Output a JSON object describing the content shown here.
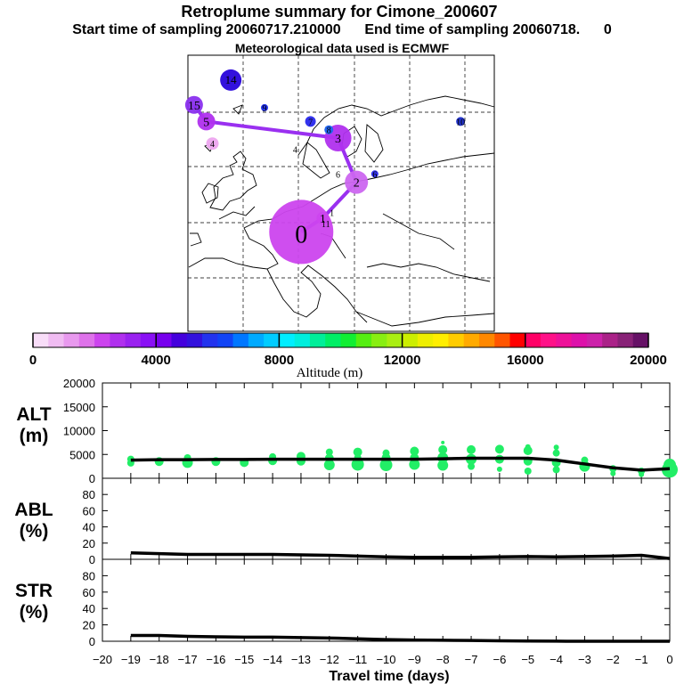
{
  "header": {
    "title": "Retroplume summary for Cimone_200607",
    "subtitle": "Start time of sampling 20060717.210000      End time of sampling 20060718.      0",
    "met_note": "Meteorological data used is ECMWF"
  },
  "colors": {
    "plume_purple": "#9a30f0",
    "alt_points": "#22ee66",
    "black": "#000000"
  },
  "map": {
    "track_days": [
      0,
      1,
      2,
      3,
      5,
      15
    ],
    "track": [
      {
        "day": 0,
        "label": "0",
        "lon_frac": 0.37,
        "lat_frac": 0.64,
        "size": 36,
        "color": "#cc44ee"
      },
      {
        "day": 1,
        "label": "1",
        "lon_frac": 0.44,
        "lat_frac": 0.59,
        "size": 7,
        "color": "#cc44ee"
      },
      {
        "day": 2,
        "label": "2",
        "lon_frac": 0.55,
        "lat_frac": 0.46,
        "size": 13,
        "color": "#cc66f0"
      },
      {
        "day": 3,
        "label": "3",
        "lon_frac": 0.49,
        "lat_frac": 0.3,
        "size": 15,
        "color": "#b030ee"
      },
      {
        "day": 5,
        "label": "5",
        "lon_frac": 0.06,
        "lat_frac": 0.24,
        "size": 10,
        "color": "#b030ee"
      },
      {
        "day": 15,
        "label": "15",
        "lon_frac": 0.02,
        "lat_frac": 0.18,
        "size": 10,
        "color": "#8a30ee"
      }
    ],
    "labels": [
      {
        "text": "14",
        "color": "#3311dd",
        "size": 12,
        "lon_frac": 0.14,
        "lat_frac": 0.09
      },
      {
        "text": "9",
        "color": "#2233ee",
        "size": 4,
        "lon_frac": 0.25,
        "lat_frac": 0.19
      },
      {
        "text": "4",
        "color": "#eeaaf0",
        "size": 7,
        "lon_frac": 0.08,
        "lat_frac": 0.32
      },
      {
        "text": "4",
        "color": "#ffffff",
        "size": 0,
        "lon_frac": 0.35,
        "lat_frac": 0.34
      },
      {
        "text": "7",
        "color": "#3333ee",
        "size": 6,
        "lon_frac": 0.4,
        "lat_frac": 0.24
      },
      {
        "text": "8",
        "color": "#2266ee",
        "size": 5,
        "lon_frac": 0.46,
        "lat_frac": 0.27
      },
      {
        "text": "10",
        "color": "#2233cc",
        "size": 5,
        "lon_frac": 0.89,
        "lat_frac": 0.24
      },
      {
        "text": "6",
        "color": "#ffffff",
        "size": 0,
        "lon_frac": 0.49,
        "lat_frac": 0.43
      },
      {
        "text": "6",
        "color": "#3333ee",
        "size": 4,
        "lon_frac": 0.61,
        "lat_frac": 0.43
      },
      {
        "text": "1",
        "color": "#ffffff",
        "size": 0,
        "lon_frac": 0.47,
        "lat_frac": 0.57
      },
      {
        "text": "11",
        "color": "#ffffff",
        "size": 0,
        "lon_frac": 0.45,
        "lat_frac": 0.61
      }
    ]
  },
  "colorbar": {
    "title": "Altitude (m)",
    "ticks": [
      "0",
      "4000",
      "8000",
      "12000",
      "16000",
      "20000"
    ],
    "colors": [
      "#f8ddf8",
      "#f0bcf2",
      "#e899ee",
      "#de72ea",
      "#cc44ee",
      "#b030ee",
      "#9a22f0",
      "#8a10f5",
      "#7700ee",
      "#4400dd",
      "#3311dd",
      "#2233ee",
      "#1144f5",
      "#0077ff",
      "#00aaff",
      "#00ccff",
      "#00eeff",
      "#00eedd",
      "#00ee99",
      "#00ee66",
      "#11ee33",
      "#55ee11",
      "#88ee11",
      "#aaee11",
      "#ccee00",
      "#eeee00",
      "#ffee00",
      "#ffcc00",
      "#ffaa00",
      "#ff8800",
      "#ff5500",
      "#ff0000",
      "#ff0066",
      "#ff1188",
      "#ee1199",
      "#dd11aa",
      "#cc22aa",
      "#aa2288",
      "#882277",
      "#661166"
    ]
  },
  "chart_data": [
    {
      "type": "line",
      "name": "alt",
      "ylabel": "ALT\n(m)",
      "ylabel_lines": [
        "ALT",
        "(m)"
      ],
      "ylim": [
        0,
        20000
      ],
      "yticks": [
        "0",
        "5000",
        "10000",
        "15000",
        "20000"
      ],
      "x": [
        -19,
        -18,
        -17,
        -16,
        -15,
        -14,
        -13,
        -12,
        -11,
        -10,
        -9,
        -8,
        -7,
        -6,
        -5,
        -4,
        -3,
        -2,
        -1,
        0
      ],
      "values": [
        3800,
        3900,
        3900,
        3950,
        3950,
        4000,
        4000,
        4000,
        4000,
        4000,
        4000,
        4100,
        4200,
        4200,
        4200,
        3800,
        3000,
        2200,
        1700,
        2000
      ],
      "scatter": [
        {
          "x": -19,
          "y": 3200,
          "s": 4
        },
        {
          "x": -19,
          "y": 4000,
          "s": 4
        },
        {
          "x": -18,
          "y": 3500,
          "s": 5
        },
        {
          "x": -17,
          "y": 3300,
          "s": 6
        },
        {
          "x": -17,
          "y": 4300,
          "s": 4
        },
        {
          "x": -16,
          "y": 3500,
          "s": 5
        },
        {
          "x": -15,
          "y": 3300,
          "s": 5
        },
        {
          "x": -14,
          "y": 3700,
          "s": 5
        },
        {
          "x": -14,
          "y": 4500,
          "s": 4
        },
        {
          "x": -13,
          "y": 3600,
          "s": 5
        },
        {
          "x": -13,
          "y": 4600,
          "s": 5
        },
        {
          "x": -12,
          "y": 2800,
          "s": 6
        },
        {
          "x": -12,
          "y": 4200,
          "s": 5
        },
        {
          "x": -12,
          "y": 5500,
          "s": 4
        },
        {
          "x": -11,
          "y": 2900,
          "s": 7
        },
        {
          "x": -11,
          "y": 4300,
          "s": 4
        },
        {
          "x": -11,
          "y": 5500,
          "s": 5
        },
        {
          "x": -10,
          "y": 2800,
          "s": 7
        },
        {
          "x": -10,
          "y": 4300,
          "s": 5
        },
        {
          "x": -10,
          "y": 5300,
          "s": 4
        },
        {
          "x": -9,
          "y": 2900,
          "s": 6
        },
        {
          "x": -9,
          "y": 4300,
          "s": 5
        },
        {
          "x": -9,
          "y": 5700,
          "s": 5
        },
        {
          "x": -8,
          "y": 2700,
          "s": 6
        },
        {
          "x": -8,
          "y": 4300,
          "s": 6
        },
        {
          "x": -8,
          "y": 6000,
          "s": 5
        },
        {
          "x": -8,
          "y": 7500,
          "s": 2
        },
        {
          "x": -7,
          "y": 2500,
          "s": 4
        },
        {
          "x": -7,
          "y": 4000,
          "s": 6
        },
        {
          "x": -7,
          "y": 6000,
          "s": 5
        },
        {
          "x": -6,
          "y": 1900,
          "s": 3
        },
        {
          "x": -6,
          "y": 4000,
          "s": 5
        },
        {
          "x": -6,
          "y": 6100,
          "s": 5
        },
        {
          "x": -5,
          "y": 1500,
          "s": 4
        },
        {
          "x": -5,
          "y": 3600,
          "s": 5
        },
        {
          "x": -5,
          "y": 5800,
          "s": 5
        },
        {
          "x": -5,
          "y": 6600,
          "s": 3
        },
        {
          "x": -4,
          "y": 1800,
          "s": 4
        },
        {
          "x": -4,
          "y": 3300,
          "s": 5
        },
        {
          "x": -4,
          "y": 5300,
          "s": 4
        },
        {
          "x": -4,
          "y": 6500,
          "s": 3
        },
        {
          "x": -3,
          "y": 2500,
          "s": 6
        },
        {
          "x": -3,
          "y": 3800,
          "s": 4
        },
        {
          "x": -2,
          "y": 2000,
          "s": 4
        },
        {
          "x": -2,
          "y": 1000,
          "s": 3
        },
        {
          "x": -1,
          "y": 1500,
          "s": 4
        },
        {
          "x": -1,
          "y": 800,
          "s": 3
        },
        {
          "x": 0,
          "y": 1800,
          "s": 9
        },
        {
          "x": 0,
          "y": 2800,
          "s": 7
        }
      ]
    },
    {
      "type": "line",
      "name": "abl",
      "ylabel": "ABL\n(%)",
      "ylabel_lines": [
        "ABL",
        "(%)"
      ],
      "ylim": [
        0,
        100
      ],
      "yticks": [
        "0",
        "20",
        "40",
        "60",
        "80"
      ],
      "x": [
        -19,
        -18,
        -17,
        -16,
        -15,
        -14,
        -13,
        -12,
        -11,
        -10,
        -9,
        -8,
        -7,
        -6,
        -5,
        -4,
        -3,
        -2,
        -1,
        0
      ],
      "values": [
        8,
        7,
        6,
        6,
        6,
        6,
        5.5,
        5,
        4,
        3,
        2.5,
        2.5,
        2.5,
        3,
        3.5,
        3,
        3.5,
        4,
        5,
        1
      ]
    },
    {
      "type": "line",
      "name": "str",
      "ylabel": "STR\n(%)",
      "ylabel_lines": [
        "STR",
        "(%)"
      ],
      "ylim": [
        0,
        100
      ],
      "yticks": [
        "0",
        "20",
        "40",
        "60",
        "80"
      ],
      "x": [
        -19,
        -18,
        -17,
        -16,
        -15,
        -14,
        -13,
        -12,
        -11,
        -10,
        -9,
        -8,
        -7,
        -6,
        -5,
        -4,
        -3,
        -2,
        -1,
        0
      ],
      "values": [
        7,
        7,
        6,
        5.5,
        5,
        5,
        4.5,
        4,
        3,
        2,
        1.5,
        1.2,
        1,
        0.6,
        0.3,
        0.1,
        0,
        0,
        0,
        0
      ]
    }
  ],
  "xaxis": {
    "title": "Travel time (days)",
    "range": [
      -20,
      0
    ],
    "ticks": [
      "−20",
      "−19",
      "−18",
      "−17",
      "−16",
      "−15",
      "−14",
      "−13",
      "−12",
      "−11",
      "−10",
      "−9",
      "−8",
      "−7",
      "−6",
      "−5",
      "−4",
      "−3",
      "−2",
      "−1",
      "0"
    ]
  }
}
